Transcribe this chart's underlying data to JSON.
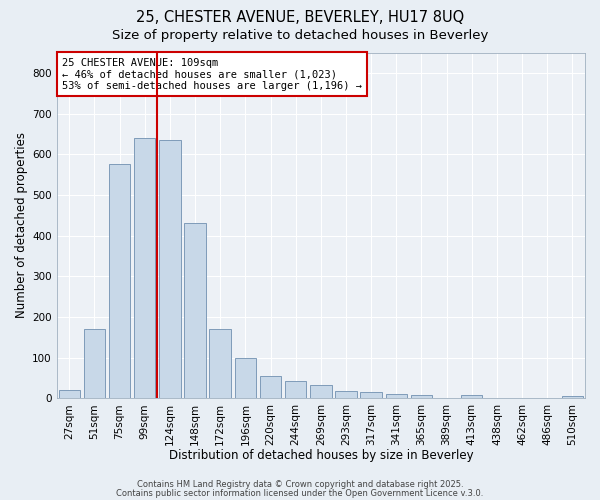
{
  "title_line1": "25, CHESTER AVENUE, BEVERLEY, HU17 8UQ",
  "title_line2": "Size of property relative to detached houses in Beverley",
  "xlabel": "Distribution of detached houses by size in Beverley",
  "ylabel": "Number of detached properties",
  "bar_labels": [
    "27sqm",
    "51sqm",
    "75sqm",
    "99sqm",
    "124sqm",
    "148sqm",
    "172sqm",
    "196sqm",
    "220sqm",
    "244sqm",
    "269sqm",
    "293sqm",
    "317sqm",
    "341sqm",
    "365sqm",
    "389sqm",
    "413sqm",
    "438sqm",
    "462sqm",
    "486sqm",
    "510sqm"
  ],
  "bar_values": [
    20,
    170,
    575,
    640,
    635,
    430,
    170,
    100,
    55,
    42,
    33,
    18,
    15,
    10,
    7,
    0,
    8,
    0,
    0,
    0,
    5
  ],
  "bar_color": "#c8d8e8",
  "bar_edgecolor": "#7090b0",
  "bar_linewidth": 0.6,
  "vline_x": 3.5,
  "vline_color": "#cc0000",
  "annotation_line1": "25 CHESTER AVENUE: 109sqm",
  "annotation_line2": "← 46% of detached houses are smaller (1,023)",
  "annotation_line3": "53% of semi-detached houses are larger (1,196) →",
  "annotation_box_color": "#cc0000",
  "annotation_bg": "#ffffff",
  "ylim": [
    0,
    850
  ],
  "yticks": [
    0,
    100,
    200,
    300,
    400,
    500,
    600,
    700,
    800
  ],
  "footer_line1": "Contains HM Land Registry data © Crown copyright and database right 2025.",
  "footer_line2": "Contains public sector information licensed under the Open Government Licence v.3.0.",
  "bg_color": "#e8eef4",
  "plot_bg_color": "#edf1f6",
  "grid_color": "#ffffff",
  "title_fontsize": 10.5,
  "subtitle_fontsize": 9.5,
  "axis_label_fontsize": 8.5,
  "tick_fontsize": 7.5,
  "annotation_fontsize": 7.5,
  "footer_fontsize": 6
}
